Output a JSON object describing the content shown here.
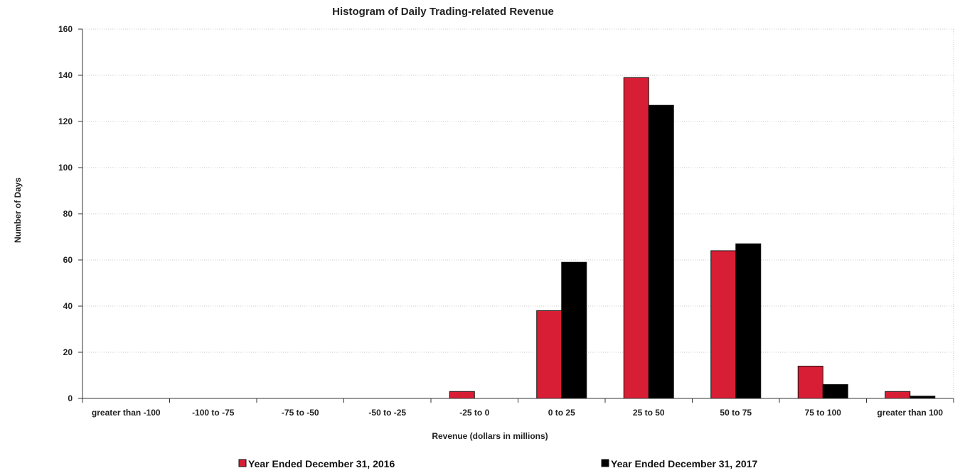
{
  "chart_data": {
    "type": "bar",
    "title": "Histogram of Daily Trading-related Revenue",
    "xlabel": "Revenue (dollars in millions)",
    "ylabel": "Number of Days",
    "categories": [
      "greater than -100",
      "-100 to -75",
      "-75 to -50",
      "-50 to -25",
      "-25 to 0",
      "0 to 25",
      "25 to 50",
      "50 to 75",
      "75 to 100",
      "greater than 100"
    ],
    "series": [
      {
        "name": "Year Ended December 31, 2016",
        "color": "#d81e34",
        "values": [
          0,
          0,
          0,
          0,
          3,
          38,
          139,
          64,
          14,
          3
        ]
      },
      {
        "name": "Year Ended December 31, 2017",
        "color": "#000000",
        "values": [
          0,
          0,
          0,
          0,
          0,
          59,
          127,
          67,
          6,
          1
        ]
      }
    ],
    "ylim": [
      0,
      160
    ],
    "yticks": [
      0,
      20,
      40,
      60,
      80,
      100,
      120,
      140,
      160
    ],
    "grid": true,
    "legend_position": "bottom"
  }
}
